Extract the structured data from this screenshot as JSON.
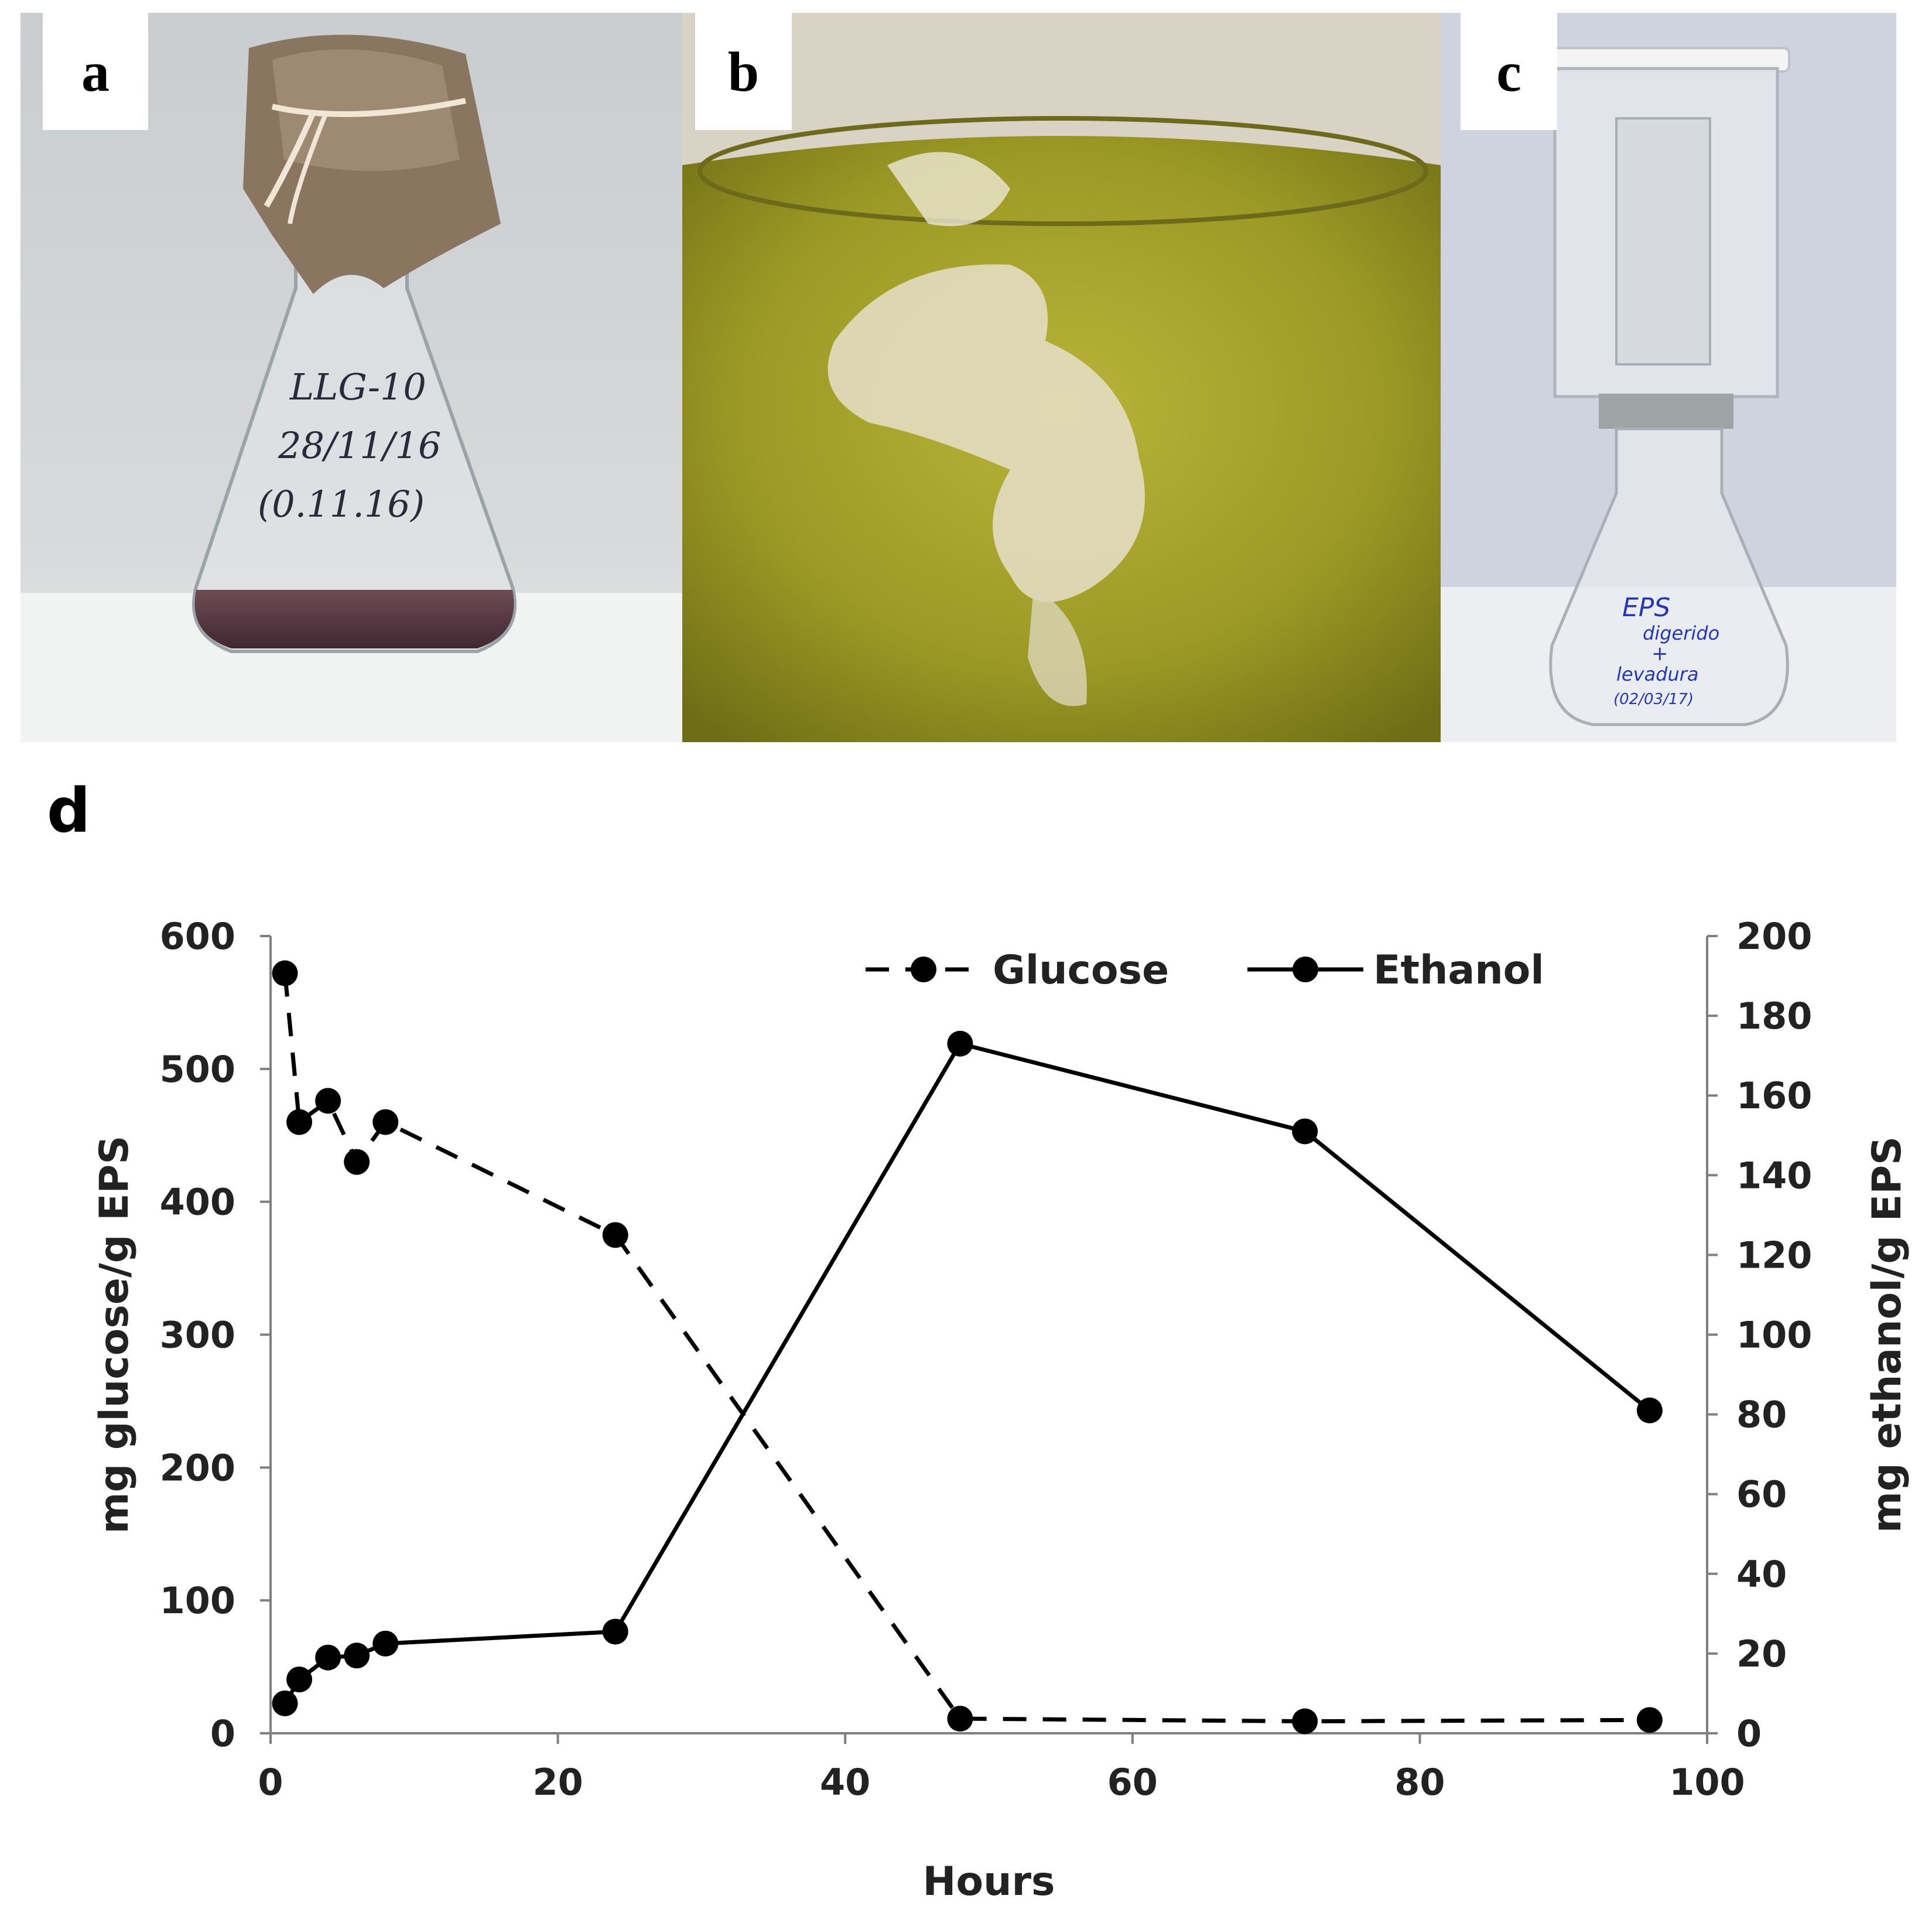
{
  "panels": {
    "a": {
      "label": "a",
      "flask_text": [
        "LLG-10",
        "28/11/16",
        "(0.11.16)"
      ]
    },
    "b": {
      "label": "b"
    },
    "c": {
      "label": "c",
      "flask_text": [
        "EPS",
        "digerido",
        "+",
        "levadura",
        "(02/03/17)"
      ]
    },
    "d": {
      "label": "d"
    }
  },
  "chart_data": {
    "type": "line",
    "xlabel": "Hours",
    "ylabel_left": "mg glucose/g EPS",
    "ylabel_right": "mg ethanol/g EPS",
    "xlim": [
      0,
      100
    ],
    "xticks": [
      0,
      20,
      40,
      60,
      80,
      100
    ],
    "ylim_left": [
      0,
      600
    ],
    "yticks_left": [
      0,
      100,
      200,
      300,
      400,
      500,
      600
    ],
    "ylim_right": [
      0,
      200
    ],
    "yticks_right": [
      0,
      20,
      40,
      60,
      80,
      100,
      120,
      140,
      160,
      180,
      200
    ],
    "grid": false,
    "legend_position": "top-right",
    "series": [
      {
        "name": "Glucose",
        "axis": "left",
        "style": "dashed",
        "x": [
          1,
          2,
          4,
          6,
          8,
          24,
          48,
          72,
          96
        ],
        "y": [
          572,
          460,
          476,
          430,
          460,
          375,
          11,
          9,
          10
        ]
      },
      {
        "name": "Ethanol",
        "axis": "right",
        "style": "solid",
        "x": [
          1,
          2,
          4,
          6,
          8,
          24,
          48,
          72,
          96
        ],
        "y": [
          7.5,
          13.5,
          19,
          19.5,
          22.5,
          25.5,
          173,
          151,
          81
        ]
      }
    ],
    "colors": {
      "line": "#000000",
      "marker": "#000000"
    }
  }
}
